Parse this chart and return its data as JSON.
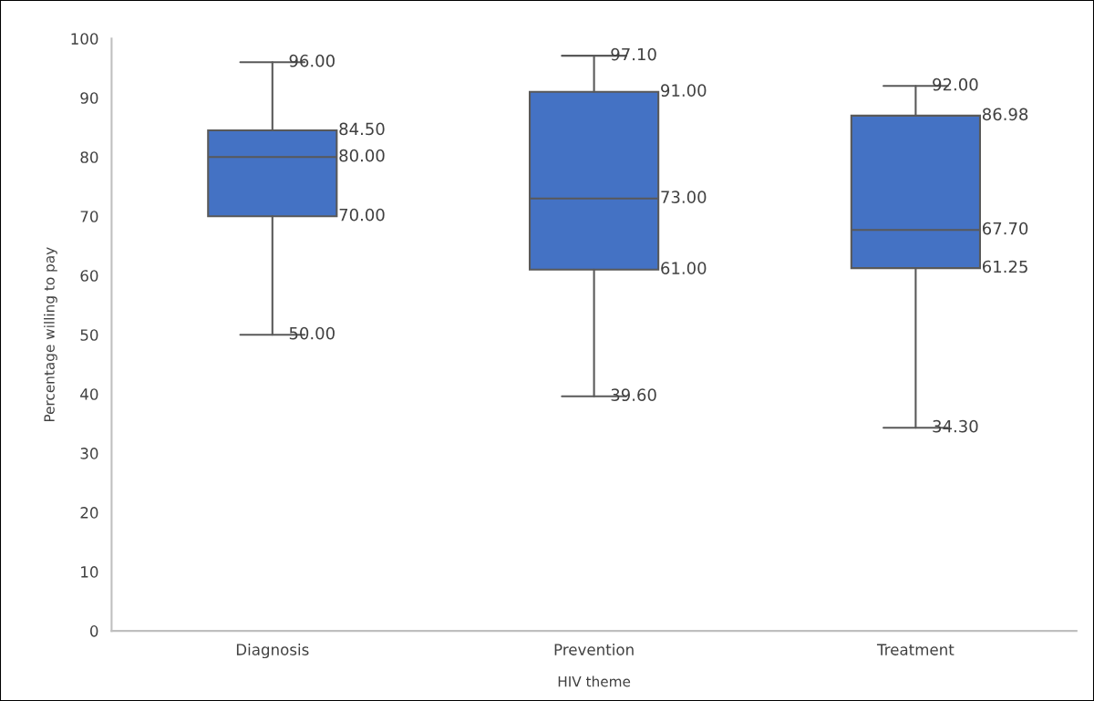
{
  "chart_data": {
    "type": "box",
    "xlabel": "HIV theme",
    "ylabel": "Percentage willing to pay",
    "categories": [
      "Diagnosis",
      "Prevention",
      "Treatment"
    ],
    "boxes": [
      {
        "low": 50,
        "q1": 70,
        "median": 80,
        "q3": 84.5,
        "high": 96
      },
      {
        "low": 39.6,
        "q1": 61,
        "median": 73,
        "q3": 91,
        "high": 97.1
      },
      {
        "low": 34.3,
        "q1": 61.25,
        "median": 67.7,
        "q3": 86.98,
        "high": 92
      }
    ],
    "value_labels": [
      [
        "50.00",
        "70.00",
        "80.00",
        "84.50",
        "96.00"
      ],
      [
        "39.60",
        "61.00",
        "73.00",
        "91.00",
        "97.10"
      ],
      [
        "34.30",
        "61.25",
        "67.70",
        "86.98",
        "92.00"
      ]
    ],
    "color": "#4472c4",
    "ylim": [
      0,
      100
    ],
    "yticks": [
      0,
      10,
      20,
      30,
      40,
      50,
      60,
      70,
      80,
      90,
      100
    ],
    "grid": false,
    "legend": false
  }
}
